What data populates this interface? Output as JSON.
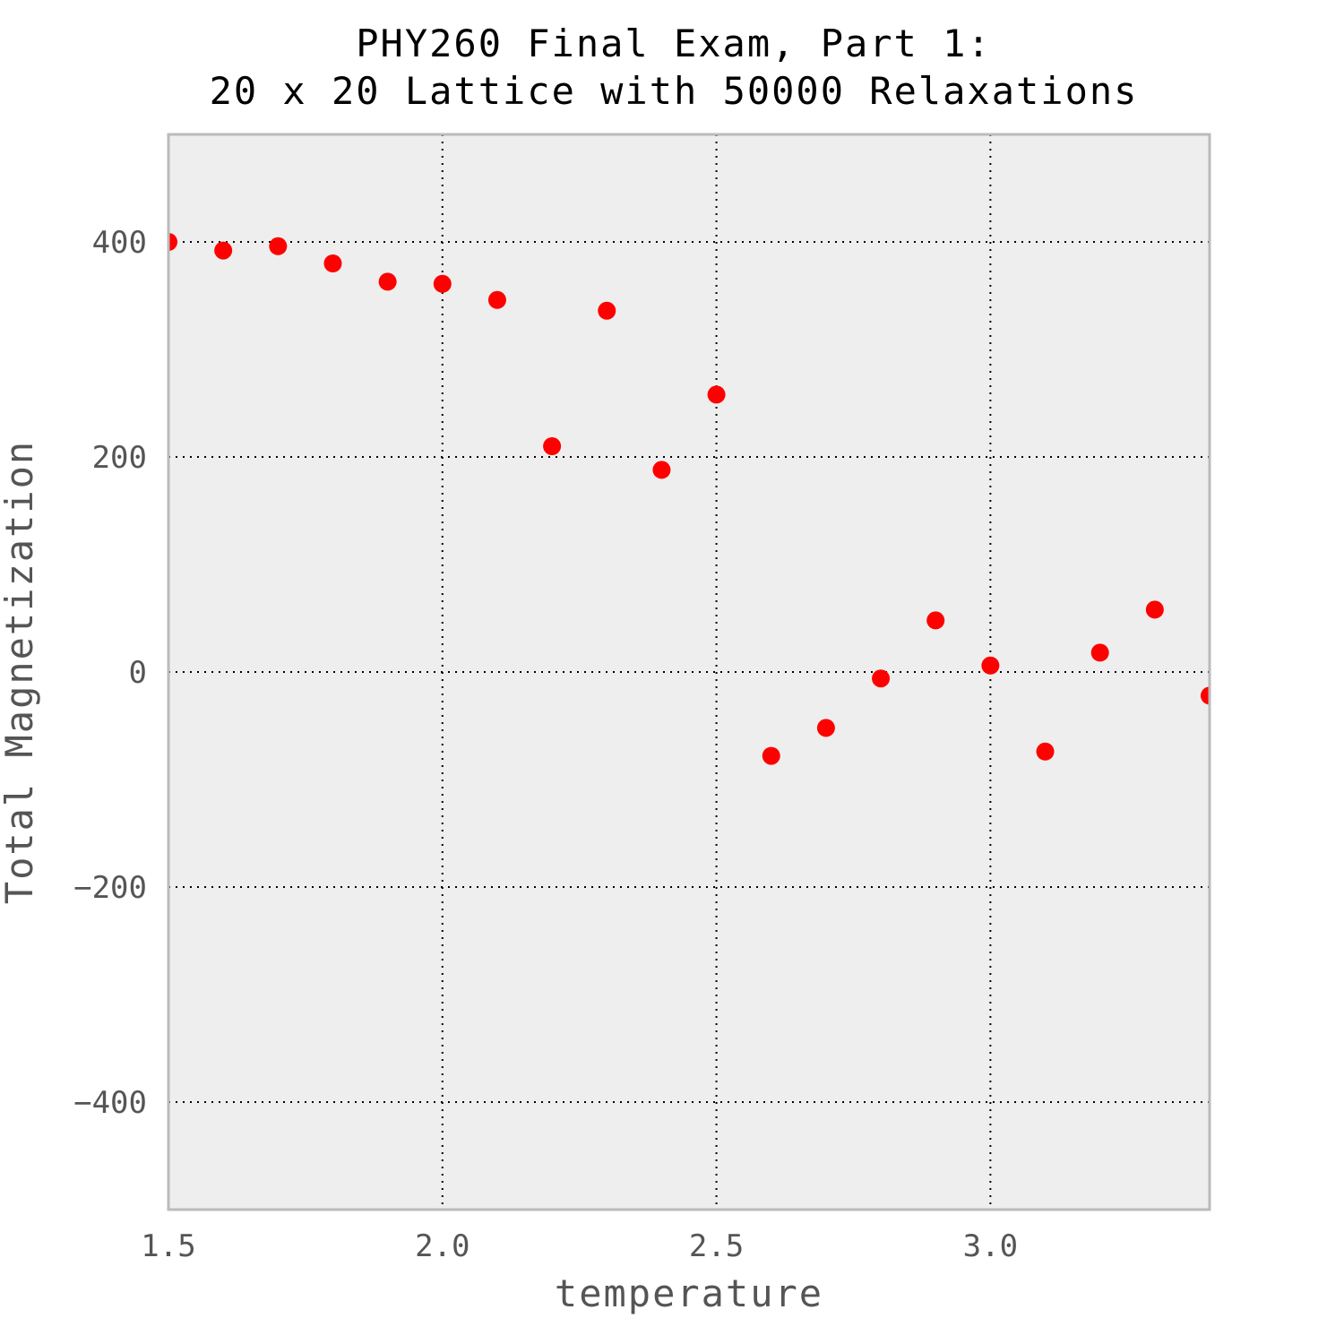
{
  "chart_data": {
    "type": "scatter",
    "title": [
      "PHY260 Final Exam, Part 1:",
      "20 x 20 Lattice with 50000 Relaxations"
    ],
    "xlabel": "temperature",
    "ylabel": "Total Magnetization",
    "xlim": [
      1.5,
      3.4
    ],
    "ylim": [
      -500,
      500
    ],
    "xticks": [
      1.5,
      2.0,
      2.5,
      3.0
    ],
    "xtick_labels": [
      "1.5",
      "2.0",
      "2.5",
      "3.0"
    ],
    "yticks": [
      400,
      200,
      0,
      -200,
      -400
    ],
    "ytick_labels": [
      "400",
      "200",
      "0",
      "−200",
      "−400"
    ],
    "grid": true,
    "point_color": "#ff0000",
    "plot_background": "#eeeeee",
    "frame_color": "#bbbbbb",
    "x": [
      1.5,
      1.6,
      1.7,
      1.8,
      1.9,
      2.0,
      2.1,
      2.2,
      2.3,
      2.4,
      2.5,
      2.6,
      2.7,
      2.8,
      2.9,
      3.0,
      3.1,
      3.2,
      3.3,
      3.4
    ],
    "y": [
      400,
      392,
      396,
      380,
      363,
      361,
      346,
      210,
      336,
      188,
      258,
      -78,
      -52,
      -6,
      48,
      6,
      -74,
      18,
      58,
      -22
    ]
  }
}
